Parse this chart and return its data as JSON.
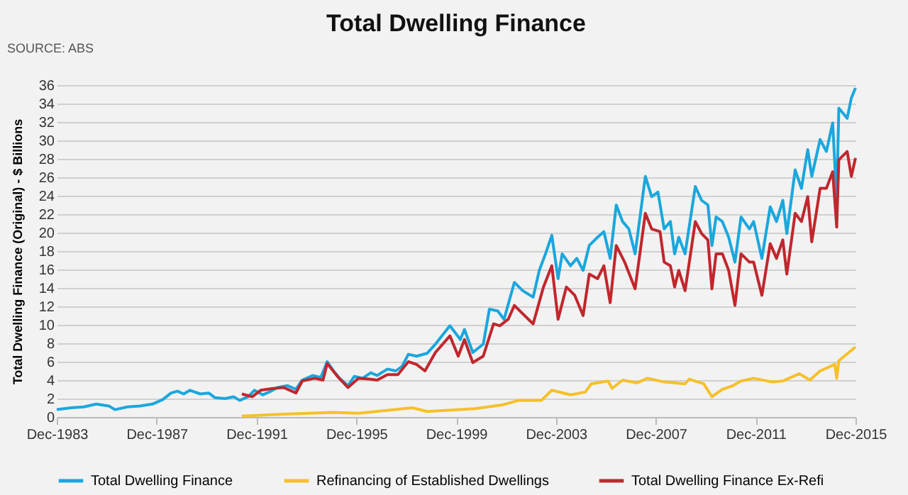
{
  "chart_data": {
    "type": "line",
    "title": "Total Dwelling Finance",
    "ylabel": "Total Dwelling Finance (Original) - $ Billions",
    "annotations": [
      "SOURCE: ABS"
    ],
    "xlim": [
      "1983-12",
      "2015-12"
    ],
    "xticks": [
      {
        "value": "1983-12",
        "label": "Dec-1983"
      },
      {
        "value": "1987-12",
        "label": "Dec-1987"
      },
      {
        "value": "1991-12",
        "label": "Dec-1991"
      },
      {
        "value": "1995-12",
        "label": "Dec-1995"
      },
      {
        "value": "1999-12",
        "label": "Dec-1999"
      },
      {
        "value": "2003-12",
        "label": "Dec-2003"
      },
      {
        "value": "2007-12",
        "label": "Dec-2007"
      },
      {
        "value": "2011-12",
        "label": "Dec-2011"
      },
      {
        "value": "2015-12",
        "label": "Dec-2015"
      }
    ],
    "ylim": [
      0,
      36
    ],
    "yticks": [
      0,
      2,
      4,
      6,
      8,
      10,
      12,
      14,
      16,
      18,
      20,
      22,
      24,
      26,
      28,
      30,
      32,
      34,
      36
    ],
    "grid": "y",
    "legend": "bottom",
    "line_style": "solid",
    "marker": "none",
    "series": [
      {
        "name": "Total Dwelling Finance",
        "color": "#1aa7dd",
        "x": [
          "1983-12",
          "1984-07",
          "1985-01",
          "1985-07",
          "1986-01",
          "1986-04",
          "1986-10",
          "1987-04",
          "1987-10",
          "1988-03",
          "1988-07",
          "1988-10",
          "1989-01",
          "1989-04",
          "1989-09",
          "1990-01",
          "1990-04",
          "1990-09",
          "1991-01",
          "1991-04",
          "1991-08",
          "1991-11",
          "1992-03",
          "1992-07",
          "1992-10",
          "1993-03",
          "1993-07",
          "1993-10",
          "1994-03",
          "1994-07",
          "1994-10",
          "1995-01",
          "1995-04",
          "1995-08",
          "1995-11",
          "1996-03",
          "1996-07",
          "1996-10",
          "1997-03",
          "1997-07",
          "1997-10",
          "1998-01",
          "1998-05",
          "1998-10",
          "1999-02",
          "1999-09",
          "2000-02",
          "2000-04",
          "2000-08",
          "2001-01",
          "2001-04",
          "2001-08",
          "2001-11",
          "2002-04",
          "2002-08",
          "2003-01",
          "2003-04",
          "2003-07",
          "2003-10",
          "2004-01",
          "2004-03",
          "2004-07",
          "2004-10",
          "2005-01",
          "2005-04",
          "2005-08",
          "2005-11",
          "2006-02",
          "2006-05",
          "2006-08",
          "2006-11",
          "2007-02",
          "2007-07",
          "2007-10",
          "2008-01",
          "2008-04",
          "2008-07",
          "2008-09",
          "2008-11",
          "2009-02",
          "2009-07",
          "2009-10",
          "2010-01",
          "2010-03",
          "2010-05",
          "2010-08",
          "2010-11",
          "2011-02",
          "2011-05",
          "2011-09",
          "2011-11",
          "2012-03",
          "2012-07",
          "2012-10",
          "2013-01",
          "2013-03",
          "2013-07",
          "2013-10",
          "2014-01",
          "2014-03",
          "2014-07",
          "2014-10",
          "2015-01",
          "2015-03",
          "2015-04",
          "2015-08",
          "2015-10",
          "2015-12"
        ],
        "values": [
          0.8,
          1.0,
          1.1,
          1.4,
          1.2,
          0.8,
          1.1,
          1.2,
          1.4,
          1.9,
          2.6,
          2.8,
          2.5,
          2.9,
          2.5,
          2.6,
          2.1,
          2.0,
          2.2,
          1.8,
          2.2,
          2.9,
          2.4,
          2.8,
          3.2,
          3.4,
          3.0,
          4.0,
          4.5,
          4.3,
          6.0,
          5.0,
          4.2,
          3.4,
          4.4,
          4.2,
          4.8,
          4.5,
          5.2,
          5.0,
          5.5,
          6.8,
          6.6,
          6.9,
          7.9,
          9.9,
          8.4,
          9.5,
          7.0,
          7.9,
          11.7,
          11.5,
          10.6,
          14.6,
          13.7,
          13.0,
          15.9,
          17.7,
          19.7,
          15.0,
          17.7,
          16.4,
          17.2,
          15.9,
          18.6,
          19.5,
          20.1,
          17.2,
          23.0,
          21.2,
          20.4,
          17.7,
          26.1,
          23.9,
          24.4,
          20.4,
          21.2,
          17.7,
          19.5,
          17.7,
          25.0,
          23.5,
          23.0,
          18.6,
          21.7,
          21.2,
          19.5,
          16.8,
          21.7,
          20.4,
          21.2,
          17.2,
          22.8,
          21.2,
          23.5,
          19.9,
          26.8,
          24.8,
          29.0,
          26.1,
          30.1,
          28.8,
          31.9,
          23.5,
          33.5,
          32.4,
          34.6,
          35.7
        ]
      },
      {
        "name": "Refinancing of Established Dwellings",
        "color": "#f5c02a",
        "x": [
          "1991-05",
          "1993-01",
          "1995-01",
          "1996-01",
          "1998-03",
          "1998-10",
          "2000-09",
          "2001-10",
          "2002-06",
          "2003-05",
          "2003-10",
          "2004-07",
          "2005-02",
          "2005-05",
          "2006-01",
          "2006-03",
          "2006-08",
          "2007-03",
          "2007-08",
          "2008-04",
          "2009-02",
          "2009-04",
          "2009-11",
          "2010-03",
          "2010-08",
          "2011-01",
          "2011-05",
          "2011-11",
          "2012-08",
          "2013-01",
          "2013-09",
          "2014-02",
          "2014-07",
          "2015-02",
          "2015-03",
          "2015-04",
          "2015-12"
        ],
        "values": [
          0.1,
          0.3,
          0.5,
          0.4,
          1.0,
          0.6,
          0.9,
          1.3,
          1.8,
          1.8,
          2.9,
          2.4,
          2.7,
          3.6,
          3.9,
          3.1,
          4.0,
          3.7,
          4.2,
          3.8,
          3.6,
          4.1,
          3.6,
          2.2,
          3.0,
          3.4,
          3.9,
          4.2,
          3.8,
          3.9,
          4.7,
          4.0,
          5.0,
          5.7,
          4.2,
          6.1,
          7.6
        ]
      },
      {
        "name": "Total Dwelling Finance Ex-Refi",
        "color": "#c0272d",
        "x": [
          "1991-05",
          "1991-10",
          "1992-02",
          "1992-08",
          "1993-01",
          "1993-07",
          "1993-10",
          "1994-04",
          "1994-08",
          "1994-10",
          "1995-03",
          "1995-08",
          "1996-01",
          "1996-07",
          "1996-10",
          "1997-03",
          "1997-08",
          "1998-01",
          "1998-05",
          "1998-09",
          "1999-02",
          "1999-09",
          "2000-01",
          "2000-04",
          "2000-08",
          "2001-01",
          "2001-06",
          "2001-09",
          "2002-01",
          "2002-04",
          "2002-08",
          "2003-01",
          "2003-06",
          "2003-10",
          "2004-01",
          "2004-05",
          "2004-09",
          "2005-01",
          "2005-04",
          "2005-08",
          "2005-11",
          "2006-02",
          "2006-05",
          "2006-09",
          "2007-02",
          "2007-07",
          "2007-10",
          "2008-02",
          "2008-04",
          "2008-07",
          "2008-09",
          "2008-11",
          "2009-02",
          "2009-07",
          "2009-10",
          "2010-01",
          "2010-03",
          "2010-05",
          "2010-08",
          "2010-11",
          "2011-02",
          "2011-05",
          "2011-09",
          "2011-11",
          "2012-03",
          "2012-07",
          "2012-10",
          "2013-01",
          "2013-03",
          "2013-07",
          "2013-10",
          "2014-01",
          "2014-03",
          "2014-07",
          "2014-10",
          "2015-01",
          "2015-03",
          "2015-04",
          "2015-08",
          "2015-10",
          "2015-12"
        ],
        "values": [
          2.5,
          2.2,
          2.9,
          3.1,
          3.2,
          2.6,
          3.9,
          4.2,
          4.0,
          5.8,
          4.4,
          3.2,
          4.2,
          4.1,
          4.0,
          4.6,
          4.6,
          6.0,
          5.7,
          5.0,
          7.0,
          8.8,
          6.6,
          8.4,
          5.9,
          6.6,
          10.1,
          9.9,
          10.6,
          12.1,
          11.2,
          10.1,
          14.1,
          16.4,
          10.6,
          14.1,
          13.2,
          11.0,
          15.5,
          15.0,
          16.4,
          12.4,
          18.6,
          16.8,
          13.9,
          22.1,
          20.4,
          20.1,
          16.8,
          16.4,
          14.1,
          15.9,
          13.7,
          21.2,
          19.9,
          19.2,
          13.9,
          17.7,
          17.7,
          15.9,
          12.1,
          17.7,
          16.8,
          16.8,
          13.2,
          18.8,
          17.2,
          19.2,
          15.5,
          22.1,
          21.2,
          23.9,
          19.0,
          24.8,
          24.8,
          26.6,
          20.6,
          27.9,
          28.8,
          26.1,
          28.1
        ]
      }
    ]
  }
}
